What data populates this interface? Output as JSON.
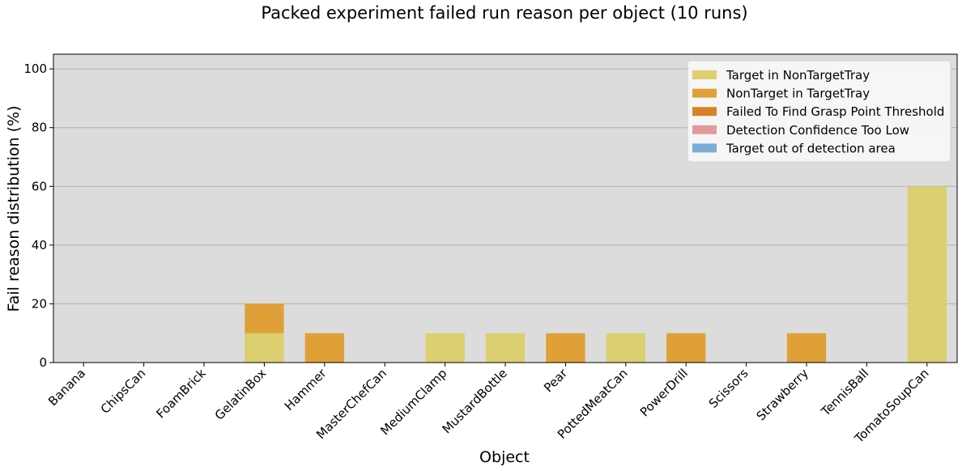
{
  "chart_data": {
    "type": "bar",
    "stacked": true,
    "title": "Packed experiment failed run reason per object (10 runs)",
    "xlabel": "Object",
    "ylabel": "Fail reason distribution (%)",
    "ylim": [
      0,
      105
    ],
    "yticks": [
      0,
      20,
      40,
      60,
      80,
      100
    ],
    "grid": "horizontal",
    "legend_position": "top-right",
    "plot_background": "#dcdcdc",
    "categories": [
      "Banana",
      "ChipsCan",
      "FoamBrick",
      "GelatinBox",
      "Hammer",
      "MasterChefCan",
      "MediumClamp",
      "MustardBottle",
      "Pear",
      "PottedMeatCan",
      "PowerDrill",
      "Scissors",
      "Strawberry",
      "TennisBall",
      "TomatoSoupCan"
    ],
    "series": [
      {
        "name": "Target in NonTargetTray",
        "color": "#dbcf70",
        "values": [
          0,
          0,
          0,
          10,
          0,
          0,
          10,
          10,
          0,
          10,
          0,
          0,
          0,
          0,
          60
        ]
      },
      {
        "name": "NonTarget in TargetTray",
        "color": "#e0a038",
        "values": [
          0,
          0,
          0,
          10,
          10,
          0,
          0,
          0,
          10,
          0,
          10,
          0,
          10,
          0,
          0
        ]
      },
      {
        "name": "Failed To Find Grasp Point Threshold",
        "color": "#d98128",
        "values": [
          0,
          0,
          0,
          0,
          0,
          0,
          0,
          0,
          0,
          0,
          0,
          0,
          0,
          0,
          0
        ]
      },
      {
        "name": "Detection Confidence Too Low",
        "color": "#e39a9a",
        "values": [
          0,
          0,
          0,
          0,
          0,
          0,
          0,
          0,
          0,
          0,
          0,
          0,
          0,
          0,
          0
        ]
      },
      {
        "name": "Target out of detection area",
        "color": "#7aaed6",
        "values": [
          0,
          0,
          0,
          0,
          0,
          0,
          0,
          0,
          0,
          0,
          0,
          0,
          0,
          0,
          0
        ]
      }
    ]
  }
}
